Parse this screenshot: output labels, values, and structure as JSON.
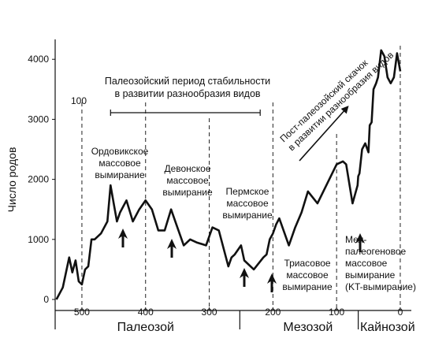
{
  "chart_data": {
    "type": "line",
    "ylabel": "Число родов",
    "y_ticks": [
      "0",
      "1000",
      "2000",
      "3000",
      "4000"
    ],
    "x_ticks": [
      "500",
      "400",
      "300",
      "200",
      "100",
      "0"
    ],
    "ylim": [
      0,
      4200
    ],
    "xlim": [
      542,
      -5
    ],
    "x_reversed": true,
    "eras": [
      "Палеозой",
      "Мезозой",
      "Кайнозой"
    ],
    "series": [
      {
        "values_x": [
          540,
          530,
          520,
          515,
          510,
          505,
          500,
          495,
          490,
          485,
          480,
          470,
          460,
          455,
          450,
          445,
          440,
          430,
          420,
          410,
          400,
          390,
          380,
          370,
          360,
          350,
          340,
          330,
          320,
          305,
          295,
          285,
          270,
          265,
          260,
          250,
          245,
          230,
          215,
          210,
          205,
          200,
          195,
          190,
          175,
          165,
          155,
          145,
          130,
          100,
          90,
          85,
          75,
          67,
          66,
          64,
          60,
          55,
          50,
          48,
          45,
          42,
          38,
          35,
          30,
          25,
          20,
          15,
          10,
          5,
          0
        ],
        "values_y": [
          0,
          200,
          700,
          450,
          650,
          300,
          250,
          500,
          550,
          1000,
          1000,
          1100,
          1300,
          1900,
          1600,
          1300,
          1450,
          1650,
          1300,
          1500,
          1650,
          1500,
          1150,
          1150,
          1500,
          1200,
          900,
          1000,
          950,
          900,
          1200,
          1150,
          550,
          700,
          750,
          900,
          650,
          500,
          700,
          750,
          1000,
          1100,
          1250,
          1350,
          900,
          1200,
          1450,
          1800,
          1600,
          2250,
          2300,
          2250,
          1600,
          1900,
          2050,
          2100,
          2500,
          2600,
          2450,
          2900,
          2950,
          3500,
          3600,
          3700,
          4150,
          4050,
          3700,
          3600,
          3700,
          4100,
          3800
        ]
      }
    ],
    "annotations": {
      "paleozoic_plateau": "Палеозойский период стабильности\nв развитии разнообразия видов",
      "postpaleozoic": "Пост-палеозойский скачок\nв развитии разнообразия видов",
      "ordovician": "Ордовикское\nмассовое\nвымирание",
      "devonian": "Девонское\nмассовое\nвымирание",
      "permian": "Пермское\nмассовое\nвымирание",
      "triassic": "Триасовое\nмассовое\nвымирание",
      "cretaceous": "Мел-\nпалеогеновое\nмассовое\nвымирание\n(KT-вымирание)",
      "mark_100": "100"
    }
  }
}
